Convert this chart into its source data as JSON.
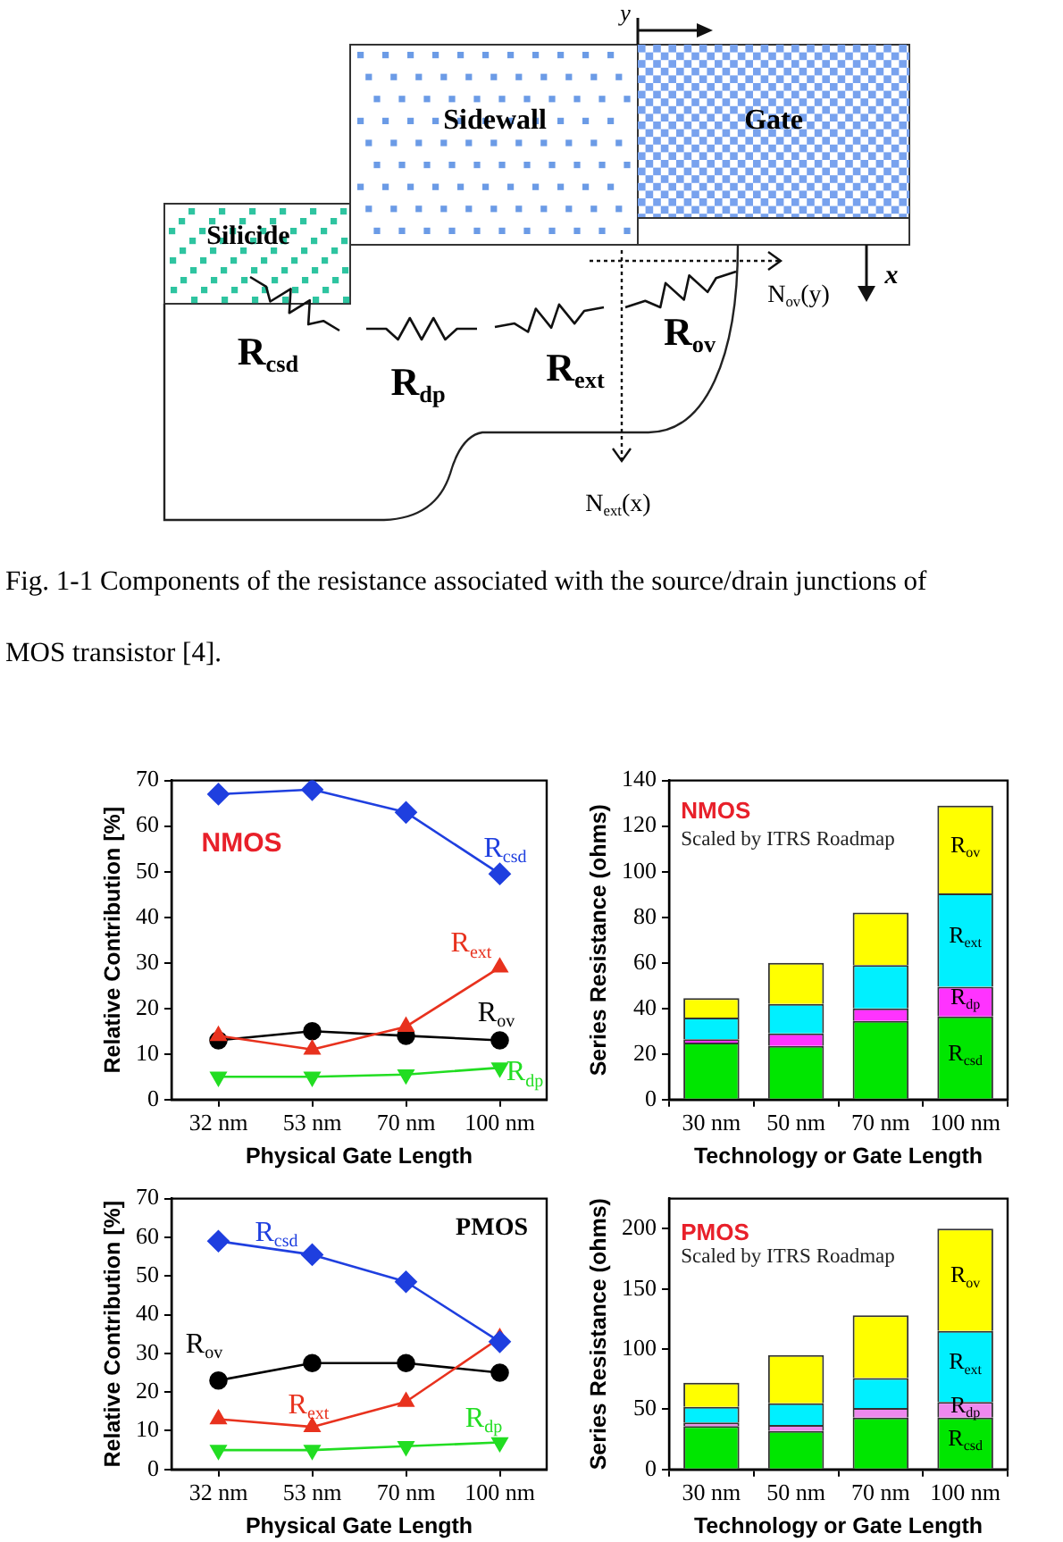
{
  "chart_data": [
    {
      "type": "other",
      "annotations": [
        "y",
        "Sidewall",
        "Gate",
        "Silicide",
        "R$_{csd}$",
        "R$_{dp}$",
        "R$_{ext}$",
        "R$_{ov}$",
        "N$_{ov}$(y)",
        "x",
        "N$_{ext}$(x)",
        "Fig. 1-1 Components of the resistance associated with the source/drain junctions of",
        "MOS transistor [4]."
      ]
    },
    {
      "type": "line",
      "xlabel": "Physical Gate Length",
      "ylabel": "Relative Contribution [%]",
      "categories": [
        "32 nm",
        "53 nm",
        "70 nm",
        "100 nm"
      ],
      "ylim": [
        0,
        70
      ],
      "yticks": [
        0,
        10,
        20,
        30,
        40,
        50,
        60,
        70
      ],
      "annotations": [
        "NMOS"
      ],
      "series": [
        {
          "name": "R$_{csd}$",
          "color": "#1f3fdf",
          "marker": "diamond",
          "values": [
            67,
            68,
            63,
            49.5
          ]
        },
        {
          "name": "R$_{ext}$",
          "color": "#e8321e",
          "marker": "triangle",
          "values": [
            14,
            11,
            16,
            29
          ]
        },
        {
          "name": "R$_{ov}$",
          "color": "#000000",
          "marker": "circle",
          "values": [
            13,
            15,
            14,
            13
          ]
        },
        {
          "name": "R$_{dp}$",
          "color": "#22dd22",
          "marker": "triangle-down",
          "values": [
            5,
            5,
            5.5,
            7
          ]
        }
      ]
    },
    {
      "type": "bar",
      "stacked": true,
      "xlabel": "Technology or Gate Length",
      "ylabel": "Series Resistance (ohms)",
      "categories": [
        "30 nm",
        "50 nm",
        "70 nm",
        "100 nm"
      ],
      "ylim": [
        0,
        140
      ],
      "yticks": [
        0,
        20,
        40,
        60,
        80,
        100,
        120,
        140
      ],
      "annotations": [
        "NMOS",
        "Scaled by ITRS Roadmap"
      ],
      "series": [
        {
          "name": "R$_{csd}$",
          "color": "#00e600",
          "values": [
            25,
            23.5,
            34.5,
            36.5
          ]
        },
        {
          "name": "R$_{dp}$",
          "color": "#ff33ff",
          "values": [
            1.5,
            5.5,
            5.5,
            13
          ]
        },
        {
          "name": "R$_{ext}$",
          "color": "#00f0ff",
          "values": [
            9.5,
            13,
            19,
            41
          ]
        },
        {
          "name": "R$_{ov}$",
          "color": "#ffff00",
          "values": [
            8.5,
            18,
            23,
            38.5
          ]
        }
      ]
    },
    {
      "type": "line",
      "xlabel": "Physical Gate Length",
      "ylabel": "Relative Contribution [%]",
      "categories": [
        "32 nm",
        "53 nm",
        "70 nm",
        "100 nm"
      ],
      "ylim": [
        0,
        70
      ],
      "yticks": [
        0,
        10,
        20,
        30,
        40,
        50,
        60,
        70
      ],
      "annotations": [
        "PMOS"
      ],
      "series": [
        {
          "name": "R$_{csd}$",
          "color": "#1f3fdf",
          "marker": "diamond",
          "values": [
            59,
            55.5,
            48.5,
            33
          ]
        },
        {
          "name": "R$_{ext}$",
          "color": "#e8321e",
          "marker": "triangle",
          "values": [
            13,
            11,
            17.5,
            34
          ]
        },
        {
          "name": "R$_{ov}$",
          "color": "#000000",
          "marker": "circle",
          "values": [
            23,
            27.5,
            27.5,
            25
          ]
        },
        {
          "name": "R$_{dp}$",
          "color": "#22dd22",
          "marker": "triangle-down",
          "values": [
            5,
            5,
            6,
            7
          ]
        }
      ]
    },
    {
      "type": "bar",
      "stacked": true,
      "xlabel": "Technology or Gate Length",
      "ylabel": "Series Resistance (ohms)",
      "categories": [
        "30 nm",
        "50 nm",
        "70 nm",
        "100 nm"
      ],
      "ylim": [
        0,
        225
      ],
      "yticks": [
        0,
        50,
        100,
        150,
        200
      ],
      "annotations": [
        "PMOS",
        "Scaled by ITRS Roadmap"
      ],
      "series": [
        {
          "name": "R$_{csd}$",
          "color": "#00e600",
          "values": [
            36,
            32,
            43,
            43
          ]
        },
        {
          "name": "R$_{dp}$",
          "color": "#ee88ee",
          "values": [
            3,
            5,
            8,
            13
          ]
        },
        {
          "name": "R$_{ext}$",
          "color": "#00f0ff",
          "values": [
            13,
            18,
            25,
            59
          ]
        },
        {
          "name": "R$_{ov}$",
          "color": "#ffff00",
          "values": [
            20,
            40,
            52,
            85
          ]
        }
      ]
    }
  ]
}
